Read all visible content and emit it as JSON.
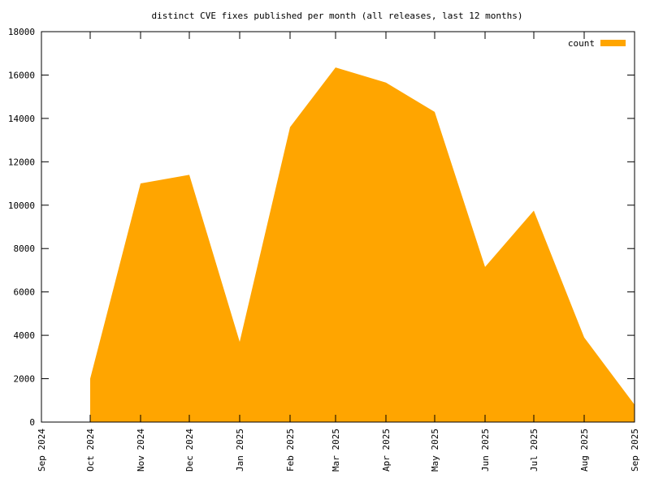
{
  "chart_data": {
    "type": "area",
    "title": "distinct CVE fixes published per month (all releases, last 12 months)",
    "x": [
      "Oct 2024",
      "Nov 2024",
      "Dec 2024",
      "Jan 2025",
      "Feb 2025",
      "Mar 2025",
      "Apr 2025",
      "May 2025",
      "Jun 2025",
      "Jul 2025",
      "Aug 2025",
      "Sep 2025"
    ],
    "series": [
      {
        "name": "count",
        "color": "#ffa500",
        "values": [
          2000,
          11000,
          11400,
          3700,
          13600,
          16350,
          15650,
          14300,
          7150,
          9750,
          3900,
          800
        ]
      }
    ],
    "xlim": [
      "Sep 2024",
      "Sep 2025"
    ],
    "xticks": [
      "Sep 2024",
      "Oct 2024",
      "Nov 2024",
      "Dec 2024",
      "Jan 2025",
      "Feb 2025",
      "Mar 2025",
      "Apr 2025",
      "May 2025",
      "Jun 2025",
      "Jul 2025",
      "Aug 2025",
      "Sep 2025"
    ],
    "ylim": [
      0,
      18000
    ],
    "yticks": [
      0,
      2000,
      4000,
      6000,
      8000,
      10000,
      12000,
      14000,
      16000,
      18000
    ],
    "legend": "top-right"
  }
}
